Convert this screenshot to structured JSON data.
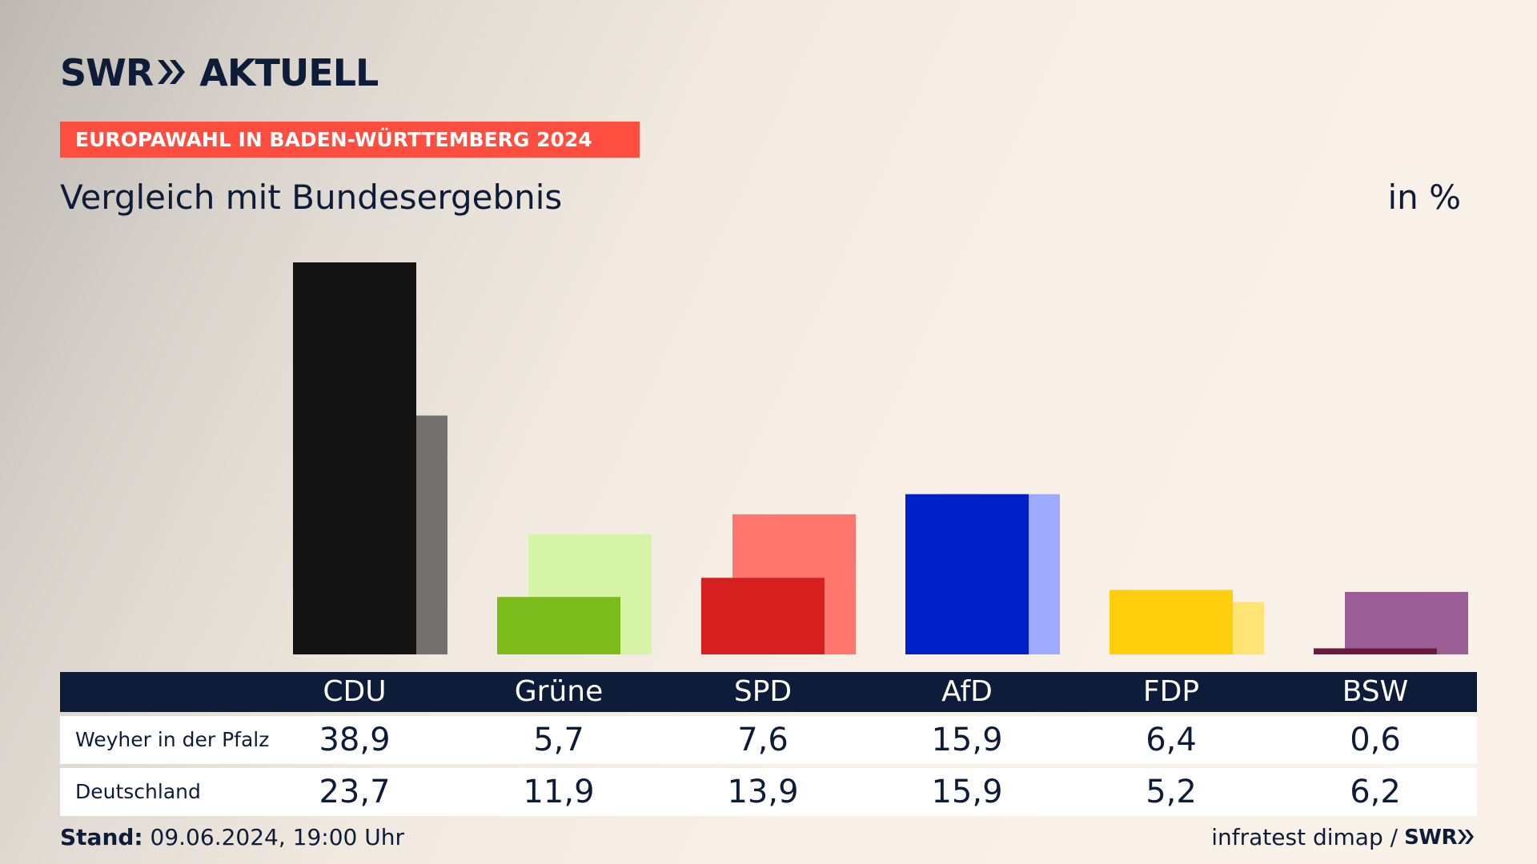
{
  "header": {
    "logo": {
      "brand": "SWR",
      "suffix": "AKTUELL",
      "icon": "double-chevron-right-icon"
    },
    "banner": "EUROPAWAHL IN BADEN-WÜRTTEMBERG 2024",
    "subtitle": "Vergleich mit Bundesergebnis",
    "unit": "in %"
  },
  "table": {
    "row_labels": [
      "Weyher in der Pfalz",
      "Deutschland"
    ]
  },
  "footer": {
    "stand_label": "Stand:",
    "stand_value": "09.06.2024, 19:00 Uhr",
    "source": "infratest dimap /",
    "source_logo": "SWR"
  },
  "colors": {
    "navy": "#0d1c38",
    "banner": "#fd4e3f"
  },
  "chart_data": {
    "type": "bar",
    "categories": [
      "CDU",
      "Grüne",
      "SPD",
      "AfD",
      "FDP",
      "BSW"
    ],
    "series": [
      {
        "name": "Weyher in der Pfalz",
        "values": [
          38.9,
          5.7,
          7.6,
          15.9,
          6.4,
          0.6
        ],
        "colors": [
          "#141414",
          "#7bbc1c",
          "#d62020",
          "#0021c8",
          "#ffcf0e",
          "#6a1a3f"
        ]
      },
      {
        "name": "Deutschland",
        "values": [
          23.7,
          11.9,
          13.9,
          15.9,
          5.2,
          6.2
        ],
        "colors": [
          "#727170",
          "#d6f4a6",
          "#ff766c",
          "#9eaaff",
          "#ffe474",
          "#9b5e96"
        ]
      }
    ],
    "value_labels": [
      [
        "38,9",
        "5,7",
        "7,6",
        "15,9",
        "6,4",
        "0,6"
      ],
      [
        "23,7",
        "11,9",
        "13,9",
        "15,9",
        "5,2",
        "6,2"
      ]
    ],
    "ylim": [
      0,
      38.9
    ],
    "legend": "table-below"
  }
}
